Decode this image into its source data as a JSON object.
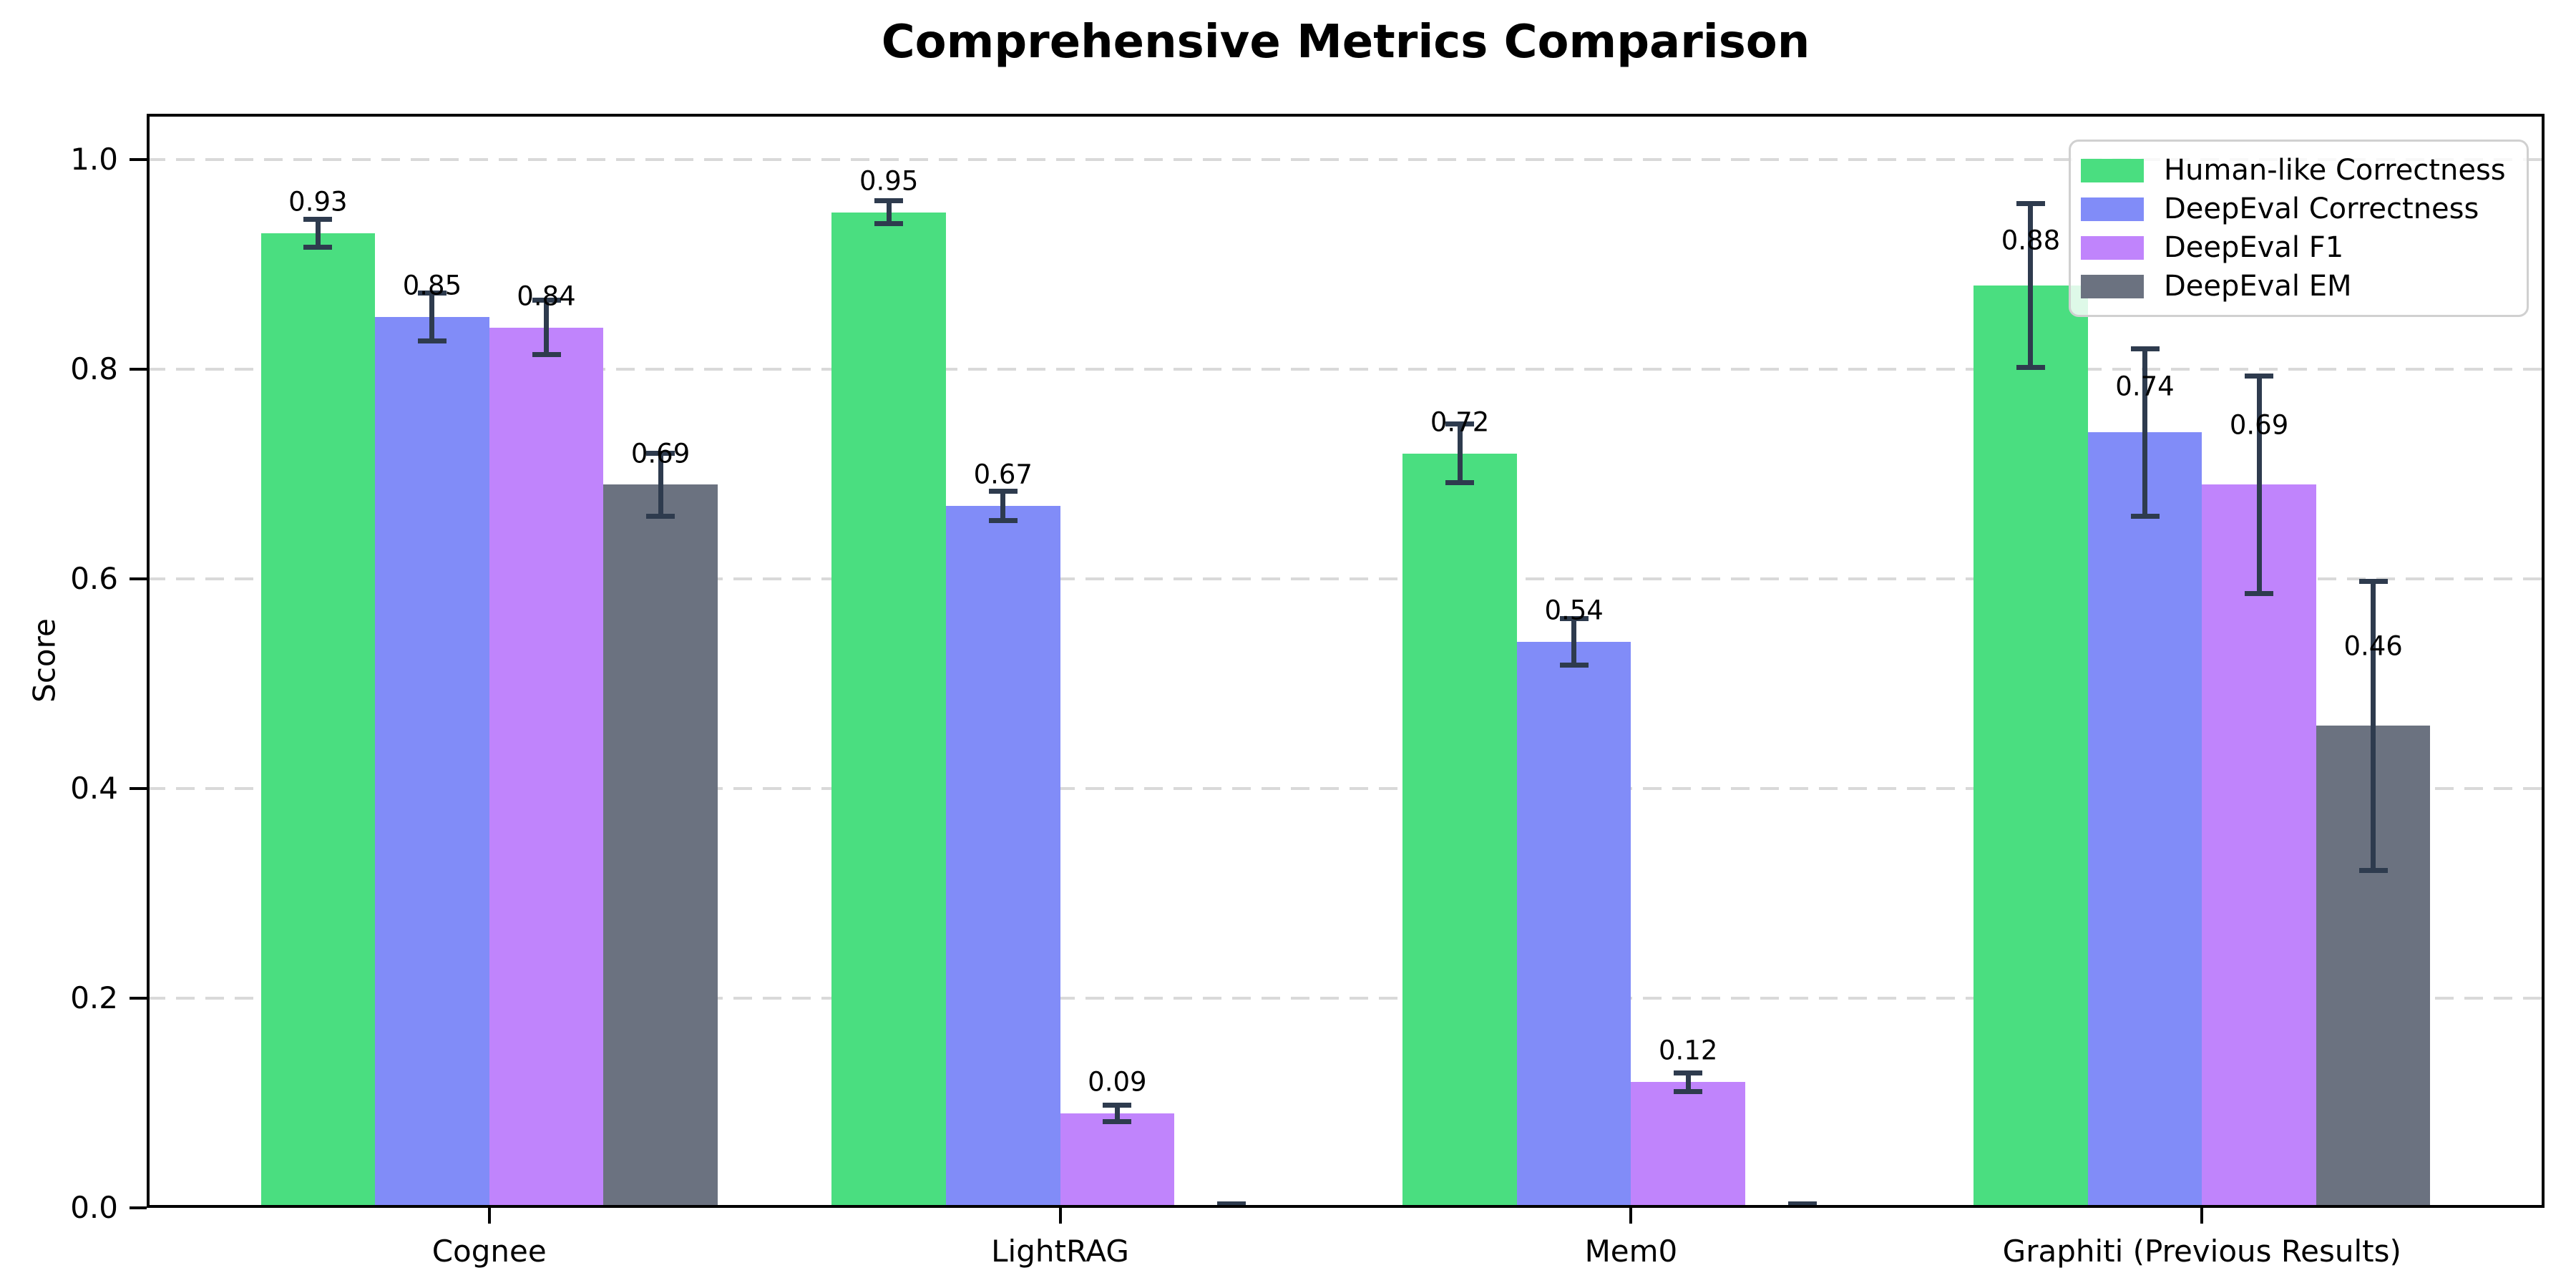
{
  "chart_data": {
    "type": "bar",
    "title": "Comprehensive Metrics Comparison",
    "ylabel": "Score",
    "xlabel": "",
    "categories": [
      "Cognee",
      "LightRAG",
      "Mem0",
      "Graphiti (Previous Results)"
    ],
    "series": [
      {
        "name": "Human-like Correctness",
        "color": "#4ade80",
        "values": [
          0.93,
          0.95,
          0.72,
          0.88
        ],
        "errors": [
          0.013,
          0.011,
          0.028,
          0.078
        ]
      },
      {
        "name": "DeepEval Correctness",
        "color": "#818cf8",
        "values": [
          0.85,
          0.67,
          0.54,
          0.74
        ],
        "errors": [
          0.023,
          0.014,
          0.022,
          0.08
        ]
      },
      {
        "name": "DeepEval F1",
        "color": "#c084fc",
        "values": [
          0.84,
          0.09,
          0.12,
          0.69
        ],
        "errors": [
          0.026,
          0.008,
          0.009,
          0.104
        ]
      },
      {
        "name": "DeepEval EM",
        "color": "#6b7280",
        "values": [
          0.69,
          0.0,
          0.0,
          0.46
        ],
        "errors": [
          0.03,
          0.004,
          0.004,
          0.138
        ]
      }
    ],
    "bar_value_labels": {
      "cognee": [
        "0.93",
        "0.85",
        "0.84",
        "0.69"
      ],
      "lightrag": [
        "0.95",
        "0.67",
        "0.09",
        ""
      ],
      "mem0": [
        "0.72",
        "0.54",
        "0.12",
        ""
      ],
      "graphiti": [
        "0.88",
        "0.74",
        "0.69",
        "0.46"
      ]
    },
    "yticks": {
      "values": [
        0,
        0.2,
        0.4,
        0.6,
        0.8,
        1.0
      ],
      "labels": [
        "0.0",
        "0.2",
        "0.4",
        "0.6",
        "0.8",
        "1.0"
      ]
    },
    "ylim": [
      0,
      1.044
    ],
    "xlim": [
      -0.6,
      3.6
    ],
    "bar_width": 0.2,
    "grid": "horizontal-dashed",
    "error_bars": true,
    "legend_position": "upper-right"
  },
  "style_colors": {
    "error_bar": "#2e3b4e",
    "grid_line": "#d9d9d9",
    "axis_spine": "#000000",
    "legend_border": "#d0d0d0",
    "background": "#ffffff"
  }
}
